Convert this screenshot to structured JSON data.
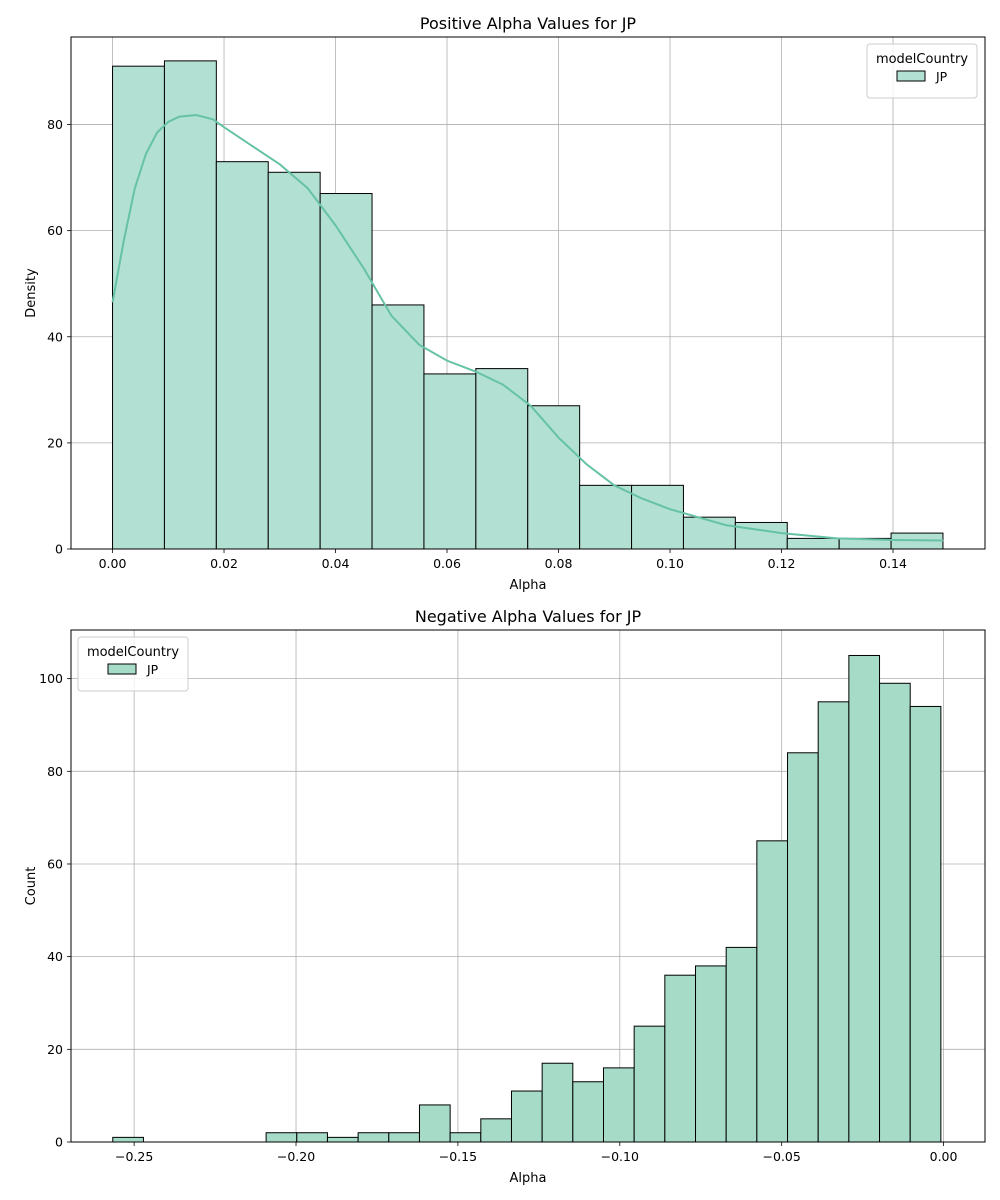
{
  "colors": {
    "bar_fill_top": "#b2e0d2",
    "bar_fill_bottom": "#a6dbc8",
    "bar_edge": "#000000",
    "kde_line": "#66c2a5",
    "grid": "#b0b0b0",
    "legend_border": "#cccccc"
  },
  "chart_data": [
    {
      "type": "bar",
      "subtype": "histogram_with_kde",
      "title": "Positive Alpha Values for JP",
      "xlabel": "Alpha",
      "ylabel": "Density",
      "xlim": [
        -0.00745,
        0.1565
      ],
      "ylim": [
        0,
        96.5
      ],
      "xticks": [
        0.0,
        0.02,
        0.04,
        0.06,
        0.08,
        0.1,
        0.12,
        0.14
      ],
      "xtick_labels": [
        "0.00",
        "0.02",
        "0.04",
        "0.06",
        "0.08",
        "0.10",
        "0.12",
        "0.14"
      ],
      "yticks": [
        0,
        20,
        40,
        60,
        80
      ],
      "ytick_labels": [
        "0",
        "20",
        "40",
        "60",
        "80"
      ],
      "grid": true,
      "bin_edges": [
        0.0,
        0.00931,
        0.01862,
        0.02793,
        0.03724,
        0.04655,
        0.05586,
        0.06517,
        0.07448,
        0.08379,
        0.0931,
        0.10241,
        0.11172,
        0.12103,
        0.13034,
        0.13965,
        0.14896
      ],
      "values": [
        91,
        92,
        73,
        71,
        67,
        46,
        33,
        34,
        27,
        12,
        12,
        6,
        5,
        2,
        2,
        3
      ],
      "kde": {
        "x": [
          0.0,
          0.002,
          0.004,
          0.006,
          0.008,
          0.01,
          0.012,
          0.015,
          0.018,
          0.02,
          0.025,
          0.03,
          0.035,
          0.04,
          0.045,
          0.05,
          0.055,
          0.06,
          0.065,
          0.07,
          0.075,
          0.08,
          0.085,
          0.09,
          0.095,
          0.1,
          0.11,
          0.12,
          0.13,
          0.14,
          0.149
        ],
        "y": [
          46.5,
          58,
          68,
          74.5,
          78.5,
          80.5,
          81.5,
          81.8,
          81,
          79.5,
          76,
          72.5,
          68,
          61,
          53,
          44,
          38.5,
          35.5,
          33.5,
          31,
          27,
          21,
          16,
          12,
          9.5,
          7.5,
          4.5,
          3,
          2,
          1.7,
          1.6
        ]
      },
      "legend": {
        "title": "modelCountry",
        "entries": [
          "JP"
        ],
        "placement": "top-right"
      }
    },
    {
      "type": "bar",
      "subtype": "histogram",
      "title": "Negative Alpha Values for JP",
      "xlabel": "Alpha",
      "ylabel": "Count",
      "xlim": [
        -0.2695,
        0.0128
      ],
      "ylim": [
        0,
        110.5
      ],
      "xticks": [
        -0.25,
        -0.2,
        -0.15,
        -0.1,
        -0.05,
        0.0
      ],
      "xtick_labels": [
        "−0.25",
        "−0.20",
        "−0.15",
        "−0.10",
        "−0.05",
        "0.00"
      ],
      "yticks": [
        0,
        20,
        40,
        60,
        80,
        100
      ],
      "ytick_labels": [
        "0",
        "20",
        "40",
        "60",
        "80",
        "100"
      ],
      "grid": true,
      "bin_start": -0.2566,
      "bin_width": 0.009473,
      "values": [
        1,
        0,
        0,
        0,
        0,
        2,
        2,
        1,
        2,
        2,
        8,
        2,
        5,
        11,
        17,
        13,
        16,
        25,
        36,
        38,
        42,
        65,
        84,
        95,
        105,
        99,
        94
      ],
      "legend": {
        "title": "modelCountry",
        "entries": [
          "JP"
        ],
        "placement": "top-left"
      }
    }
  ]
}
